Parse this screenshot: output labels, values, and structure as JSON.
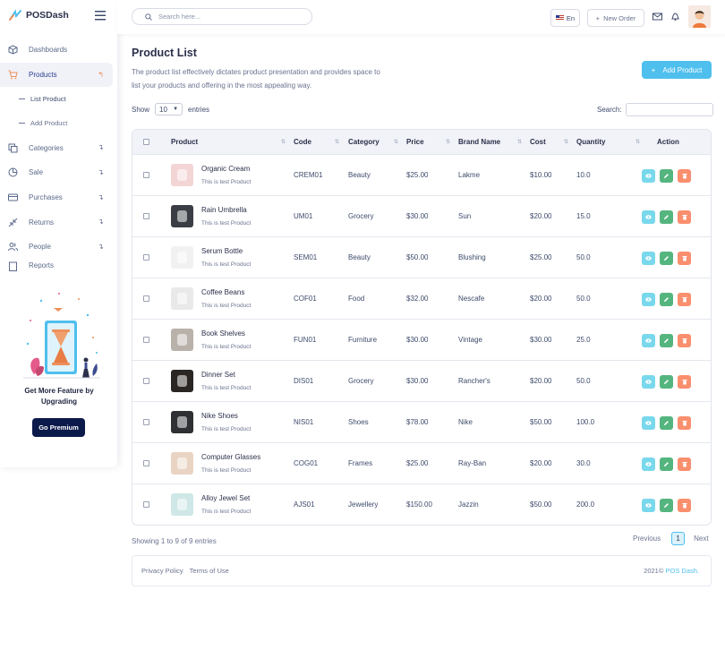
{
  "app": {
    "name": "POSDash"
  },
  "sidebar": {
    "items": [
      {
        "label": "Dashboards",
        "icon": "cube-icon"
      },
      {
        "label": "Products",
        "icon": "cart-icon"
      },
      {
        "label": "Categories",
        "icon": "copy-icon"
      },
      {
        "label": "Sale",
        "icon": "pie-chart-icon"
      },
      {
        "label": "Purchases",
        "icon": "card-icon"
      },
      {
        "label": "Returns",
        "icon": "return-icon"
      },
      {
        "label": "People",
        "icon": "people-icon"
      },
      {
        "label": "Reports",
        "icon": "report-icon"
      }
    ],
    "subitems": [
      "List Product",
      "Add Product"
    ],
    "promo_text": "Get More Feature by Upgrading",
    "promo_button": "Go Premium"
  },
  "topbar": {
    "search_placeholder": "Search here...",
    "language": "En",
    "new_order": "New Order"
  },
  "page": {
    "title": "Product List",
    "description": "The product list effectively dictates product presentation and provides space to list your products and offering in the most appealing way.",
    "add_button": "Add Product"
  },
  "controls": {
    "show_label": "Show",
    "entries_value": "10",
    "entries_label": "entries",
    "search_label": "Search:"
  },
  "table": {
    "headers": {
      "product": "Product",
      "code": "Code",
      "category": "Category",
      "price": "Price",
      "brand": "Brand Name",
      "cost": "Cost",
      "quantity": "Quantity",
      "action": "Action"
    },
    "rows": [
      {
        "name": "Organic Cream",
        "desc": "This is test Product",
        "code": "CREM01",
        "category": "Beauty",
        "price": "$25.00",
        "brand": "Lakme",
        "cost": "$10.00",
        "quantity": "10.0",
        "thumb": "#f3d5d6"
      },
      {
        "name": "Rain Umbrella",
        "desc": "This is test Product",
        "code": "UM01",
        "category": "Grocery",
        "price": "$30.00",
        "brand": "Sun",
        "cost": "$20.00",
        "quantity": "15.0",
        "thumb": "#3b3d44"
      },
      {
        "name": "Serum Bottle",
        "desc": "This is test Product",
        "code": "SEM01",
        "category": "Beauty",
        "price": "$50.00",
        "brand": "Blushing",
        "cost": "$25.00",
        "quantity": "50.0",
        "thumb": "#f1f1f1"
      },
      {
        "name": "Coffee Beans",
        "desc": "This is test Product",
        "code": "COF01",
        "category": "Food",
        "price": "$32.00",
        "brand": "Nescafe",
        "cost": "$20.00",
        "quantity": "50.0",
        "thumb": "#e9e9e9"
      },
      {
        "name": "Book Shelves",
        "desc": "This is test Product",
        "code": "FUN01",
        "category": "Furniture",
        "price": "$30.00",
        "brand": "Vintage",
        "cost": "$30.00",
        "quantity": "25.0",
        "thumb": "#b8b2ab"
      },
      {
        "name": "Dinner Set",
        "desc": "This is test Product",
        "code": "DIS01",
        "category": "Grocery",
        "price": "$30.00",
        "brand": "Rancher's",
        "cost": "$20.00",
        "quantity": "50.0",
        "thumb": "#2a2623"
      },
      {
        "name": "Nike Shoes",
        "desc": "This is test Product",
        "code": "NIS01",
        "category": "Shoes",
        "price": "$78.00",
        "brand": "Nike",
        "cost": "$50.00",
        "quantity": "100.0",
        "thumb": "#2e3033"
      },
      {
        "name": "Computer Glasses",
        "desc": "This is test Product",
        "code": "COG01",
        "category": "Frames",
        "price": "$25.00",
        "brand": "Ray-Ban",
        "cost": "$20.00",
        "quantity": "30.0",
        "thumb": "#e9d4c4"
      },
      {
        "name": "Alloy Jewel Set",
        "desc": "This is test Product",
        "code": "AJS01",
        "category": "Jewellery",
        "price": "$150.00",
        "brand": "Jazzin",
        "cost": "$50.00",
        "quantity": "200.0",
        "thumb": "#cfe7e6"
      }
    ]
  },
  "pagination": {
    "info": "Showing 1 to 9 of 9 entries",
    "previous": "Previous",
    "current": "1",
    "next": "Next"
  },
  "footer": {
    "privacy": "Privacy Policy",
    "terms": "Terms of Use",
    "copyright": "2021©",
    "brand": "POS Dash."
  },
  "colors": {
    "accent": "#4fbfed",
    "premium": "#0b1a4b",
    "view": "#79d8ec",
    "edit": "#55b57f",
    "delete": "#f98f6e",
    "active_arrow": "#ee8f5b"
  }
}
